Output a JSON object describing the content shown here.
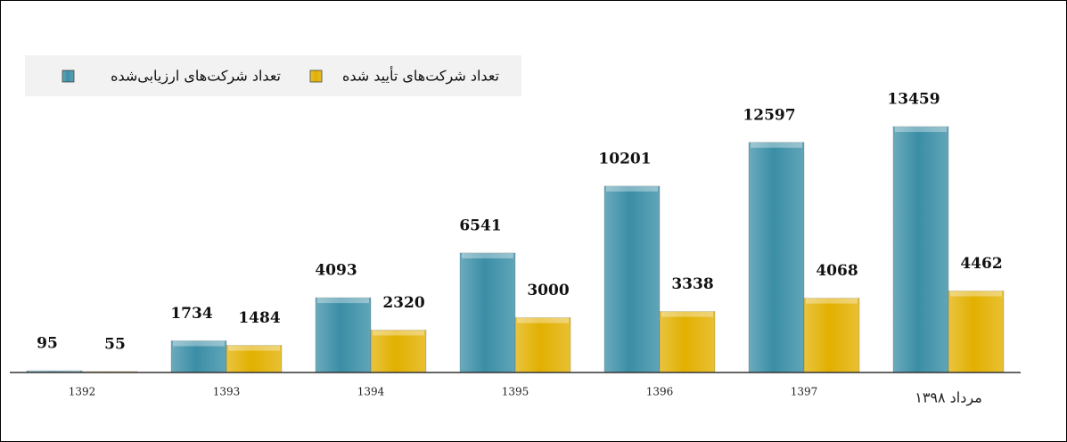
{
  "chart_data": {
    "type": "bar",
    "categories": [
      "1392",
      "1393",
      "1394",
      "1395",
      "1396",
      "1397",
      "مرداد ۱۳۹۸"
    ],
    "series": [
      {
        "name": "تعداد شرکت‌های ارزیابی‌شده",
        "color": "#3a8ea6",
        "values": [
          95,
          1734,
          4093,
          6541,
          10201,
          12597,
          13459
        ]
      },
      {
        "name": "تعداد شرکت‌های تأیید شده",
        "color": "#e2b000",
        "values": [
          55,
          1484,
          2320,
          3000,
          3338,
          4068,
          4462
        ]
      }
    ],
    "ylim": [
      0,
      16000
    ],
    "legend": "top-left"
  }
}
